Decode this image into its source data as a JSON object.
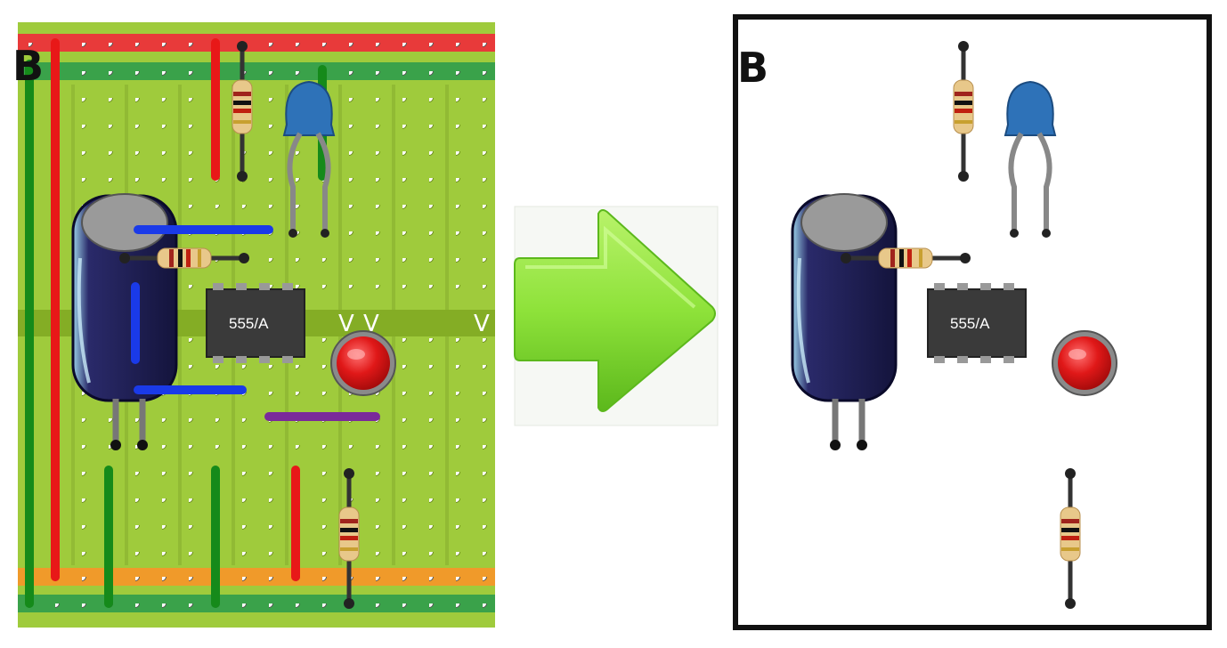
{
  "left_panel": {
    "corner_letter": "B",
    "ic_label": "555/A",
    "strip_marks": [
      "V",
      "V",
      "V"
    ]
  },
  "arrow": {
    "color": "#8ee23a",
    "direction": "right"
  },
  "right_panel": {
    "corner_letter": "B",
    "ic_label": "555/A"
  },
  "colors": {
    "board": "#9fcb3c",
    "board_strip": "#84ad25",
    "rail_red": "#e83a3a",
    "rail_green": "#3aa24a",
    "rail_orange": "#f09a2a",
    "wire_red": "#e81818",
    "wire_green": "#158a1a",
    "wire_blue": "#1a3ae8",
    "wire_purple": "#7a2a9a",
    "capacitor_body": "#1c1c50",
    "ceramic_cap": "#2e72b8",
    "led": "#e01818",
    "ic_body": "#3a3a3a"
  },
  "icons": [
    "stripboard",
    "electrolytic-capacitor",
    "ceramic-capacitor",
    "resistor",
    "ic-555",
    "led",
    "arrow-right"
  ]
}
